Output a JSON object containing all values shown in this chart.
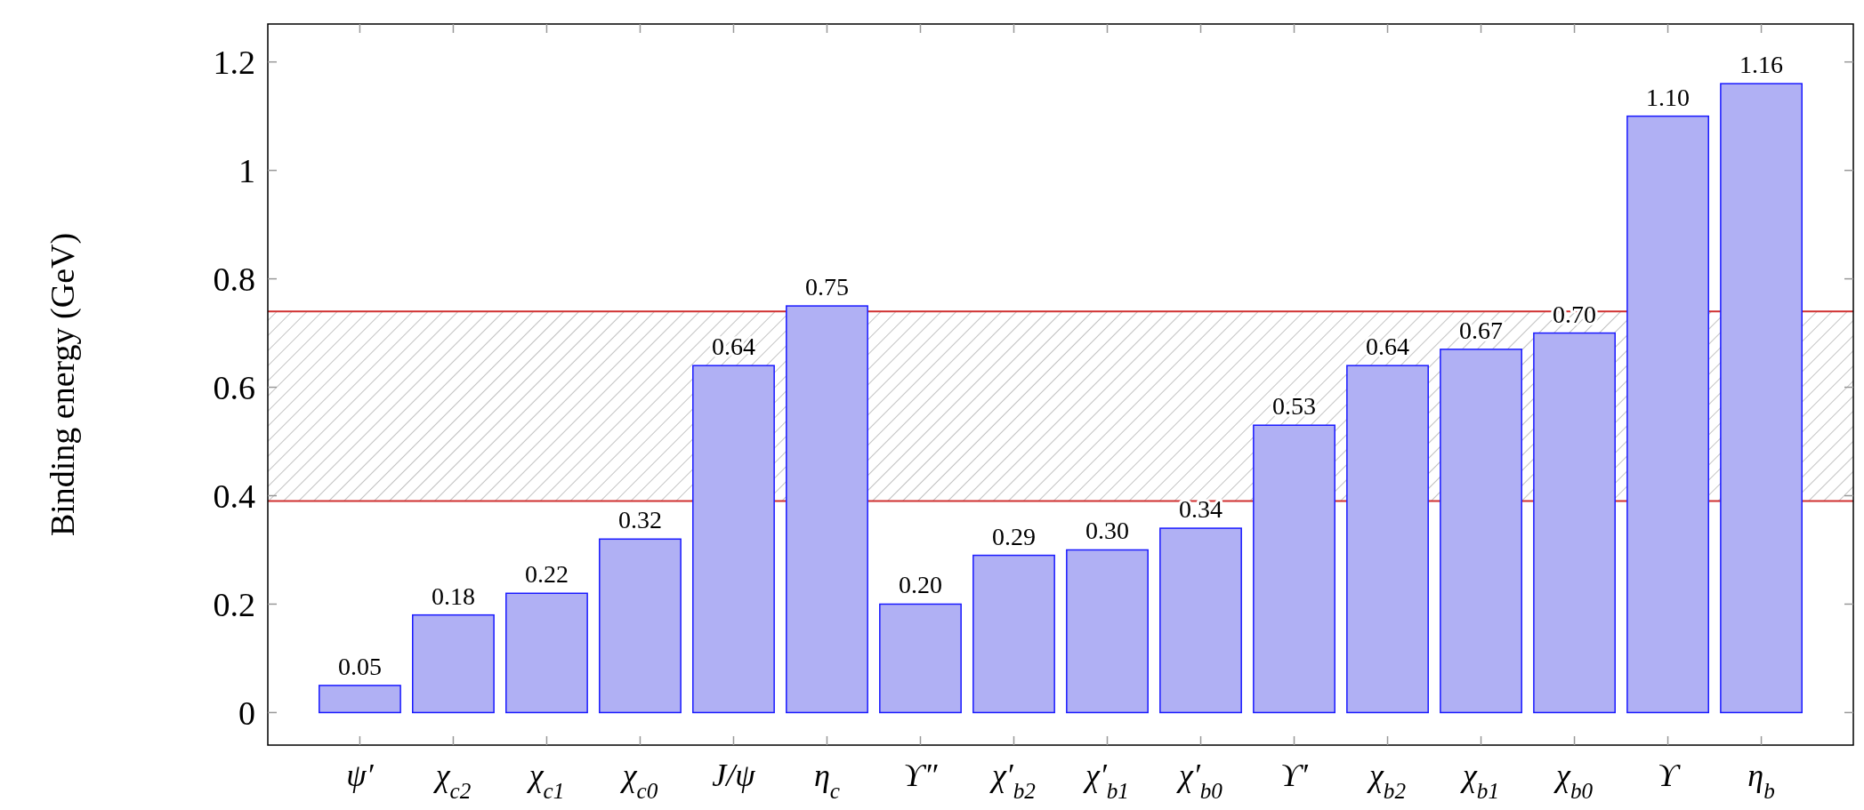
{
  "chart_data": {
    "type": "bar",
    "ylabel": "Binding energy (GeV)",
    "categories": [
      "ψ′",
      "χ$_{c2}$",
      "χ$_{c1}$",
      "χ$_{c0}$",
      "J/ψ",
      "η$_{c}$",
      "ϒ″",
      "χ′$_{b2}$",
      "χ′$_{b1}$",
      "χ′$_{b0}$",
      "ϒ′",
      "χ$_{b2}$",
      "χ$_{b1}$",
      "χ$_{b0}$",
      "ϒ",
      "η$_{b}$"
    ],
    "values": [
      0.05,
      0.18,
      0.22,
      0.32,
      0.64,
      0.75,
      0.2,
      0.29,
      0.3,
      0.34,
      0.53,
      0.64,
      0.67,
      0.7,
      1.1,
      1.16
    ],
    "value_labels": [
      "0.05",
      "0.18",
      "0.22",
      "0.32",
      "0.64",
      "0.75",
      "0.20",
      "0.29",
      "0.30",
      "0.34",
      "0.53",
      "0.64",
      "0.67",
      "0.70",
      "1.10",
      "1.16"
    ],
    "color": "#b0b0f4",
    "ylim": [
      -0.06,
      1.27
    ],
    "yticks": [
      0,
      0.2,
      0.4,
      0.6,
      0.8,
      1,
      1.2
    ],
    "bands": [
      {
        "axis": "y",
        "from": 0.39,
        "to": 0.74,
        "color": "#a0a0a0"
      }
    ],
    "ref_lines": [
      {
        "axis": "y",
        "value": 0.39,
        "color": "#d03030"
      },
      {
        "axis": "y",
        "value": 0.74,
        "color": "#d03030"
      }
    ],
    "grid": false
  }
}
